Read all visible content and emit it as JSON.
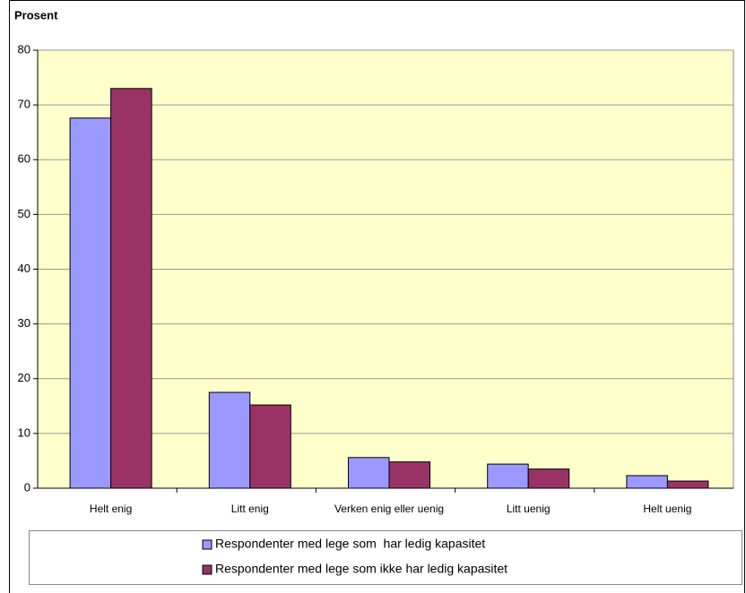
{
  "chart_data": {
    "type": "bar",
    "y_label": "Prosent",
    "categories": [
      "Helt enig",
      "Litt enig",
      "Verken enig eller uenig",
      "Litt uenig",
      "Helt uenig"
    ],
    "series": [
      {
        "name": "Respondenter med lege som  har ledig kapasitet",
        "color": "#9999ff",
        "values": [
          67.6,
          17.5,
          5.6,
          4.4,
          2.3
        ]
      },
      {
        "name": "Respondenter med lege som ikke har ledig kapasitet",
        "color": "#993366",
        "values": [
          73.0,
          15.2,
          4.8,
          3.5,
          1.3
        ]
      }
    ],
    "ylim": [
      0,
      80
    ],
    "yticks": [
      0,
      10,
      20,
      30,
      40,
      50,
      60,
      70,
      80
    ],
    "grid": true,
    "plot_background": "#ffffcc",
    "legend": "bottom"
  }
}
